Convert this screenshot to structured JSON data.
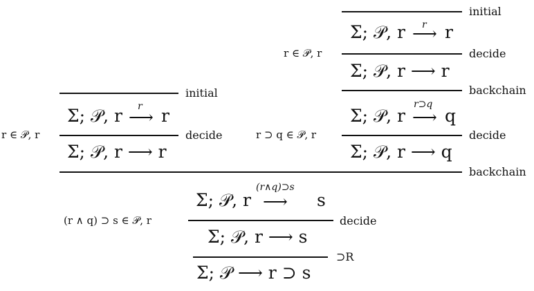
{
  "left_tree": {
    "side_condition": "r ∈ 𝒫, r",
    "initial_label": "initial",
    "focused_seq": "Σ; 𝒫, r",
    "focused_arrow_label": "r",
    "focused_target": "r",
    "decide_label": "decide",
    "unfocused_seq": "Σ; 𝒫, r ⟶ r"
  },
  "right_tree": {
    "side_condition_top": "r ∈ 𝒫, r",
    "initial_label": "initial",
    "focused_seq_top": "Σ; 𝒫, r",
    "focused_arrow_label_top": "r",
    "focused_target_top": "r",
    "decide_label_top": "decide",
    "unfocused_seq_top": "Σ; 𝒫, r ⟶ r",
    "backchain_label_top": "backchain",
    "side_condition_mid": "r ⊃ q ∈ 𝒫, r",
    "focused_seq_mid": "Σ; 𝒫, r",
    "focused_arrow_label_mid": "r⊃q",
    "focused_target_mid": "q",
    "decide_label_mid": "decide",
    "unfocused_seq_mid": "Σ; 𝒫, r ⟶ q"
  },
  "bottom": {
    "backchain_label": "backchain",
    "side_condition": "(r ∧ q) ⊃ s ∈ 𝒫, r",
    "focused_seq": "Σ; 𝒫, r",
    "focused_arrow_label": "(r∧q)⊃s",
    "focused_target": "s",
    "decide_label": "decide",
    "unfocused_seq": "Σ; 𝒫, r ⟶ s",
    "implies_rule_label": "⊃R",
    "conclusion": "Σ; 𝒫 ⟶ r ⊃ s"
  }
}
